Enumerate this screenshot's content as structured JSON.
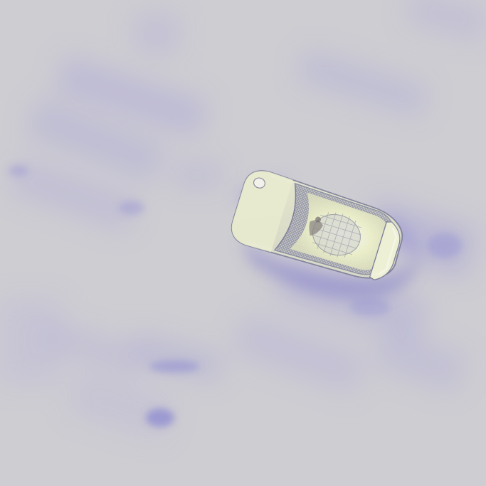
{
  "image": {
    "kind": "aerial-photograph",
    "subject": "boat",
    "colors": {
      "water_base": "#cecdd2",
      "water_texture": "#9a97d6",
      "hull": "#e4e6c4",
      "deck": "#f2f5c8",
      "mesh": "#8d8fa8",
      "wake": "#7f7cc9"
    }
  }
}
